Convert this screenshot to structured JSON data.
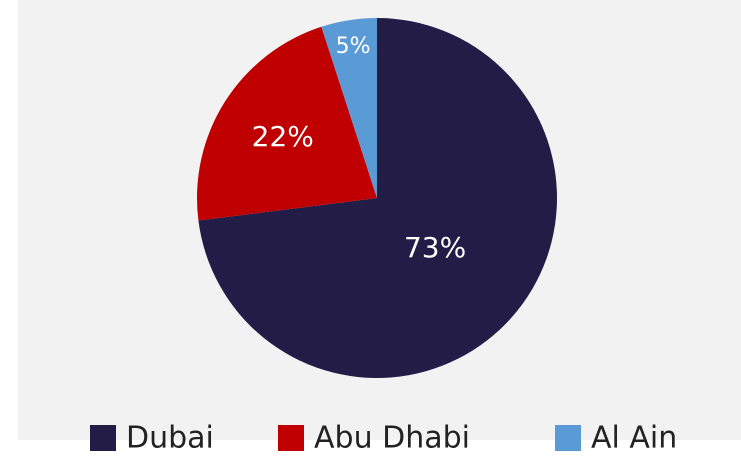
{
  "chart_data": {
    "type": "pie",
    "categories": [
      "Dubai",
      "Abu Dhabi",
      "Al Ain"
    ],
    "values": [
      73,
      22,
      5
    ],
    "value_labels": [
      "73%",
      "22%",
      "5%"
    ],
    "colors": [
      "#221c47",
      "#c00000",
      "#5b9bd5"
    ],
    "legend": "bottom"
  }
}
